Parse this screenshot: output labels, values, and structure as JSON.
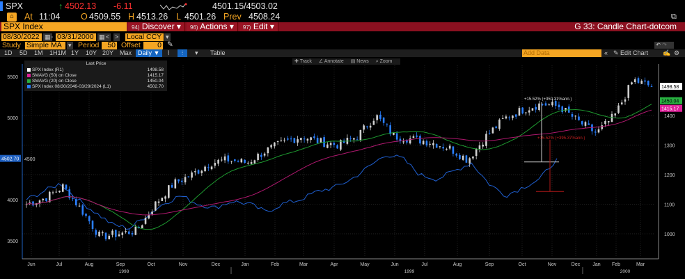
{
  "quote": {
    "ticker": "SPX",
    "last": "4502.13",
    "change": "-6.11",
    "bid_ask": "4501.15/4503.02",
    "time_label": "At",
    "time": "11:04",
    "open_label": "O",
    "open": "4509.55",
    "high_label": "H",
    "high": "4513.26",
    "low_label": "L",
    "low": "4501.26",
    "prev_label": "Prev",
    "prev": "4508.24"
  },
  "menu": {
    "security": "SPX Index",
    "discover_num": "94)",
    "discover": "Discover",
    "actions_num": "96)",
    "actions": "Actions",
    "edit_num": "97)",
    "edit": "Edit",
    "title": "G 33: Candle Chart-dotcom"
  },
  "controls": {
    "start_date": "08/30/2022",
    "end_date": "03/31/2000",
    "currency": "Local CCY",
    "study_label": "Study",
    "study": "Simple MA",
    "period_label": "Period",
    "period": "50",
    "offset_label": "Offset",
    "offset": "0"
  },
  "timeframes": [
    "1D",
    "5D",
    "1M",
    "1H1M",
    "1Y",
    "10Y",
    "20Y",
    "Max"
  ],
  "frequency": "Daily ▼",
  "table_label": "Table",
  "add_data_placeholder": "Add Data",
  "edit_chart": "Edit Chart",
  "chart_tools": [
    "Track",
    "Annotate",
    "News",
    "Zoom"
  ],
  "legend": {
    "header": "Last Price",
    "items": [
      {
        "label": "SPX Index  (R1)",
        "value": "1498.58",
        "color": "#ffffff"
      },
      {
        "label": "SMAVG (50)  on Close",
        "value": "1415.17",
        "color": "#e0209a"
      },
      {
        "label": "SMAVG (20)  on Close",
        "value": "1450.04",
        "color": "#28b040"
      },
      {
        "label": "SPX Index 08/30/2046-03/29/2024   (L1)",
        "value": "4502.70",
        "color": "#2a7fff"
      }
    ]
  },
  "chart_data": {
    "type": "candlestick",
    "x_months": [
      "Jun",
      "Jul",
      "Aug",
      "Sep",
      "Oct",
      "Nov",
      "Dec",
      "Jan",
      "Feb",
      "Mar",
      "Apr",
      "May",
      "Jun",
      "Jul",
      "Aug",
      "Sep",
      "Oct",
      "Nov",
      "Dec",
      "Jan",
      "Feb",
      "Mar"
    ],
    "x_years": [
      "1998",
      "1999",
      "2000"
    ],
    "right_axis_ticks": [
      1000,
      1100,
      1200,
      1300,
      1400
    ],
    "left_axis_ticks": [
      3500,
      4000,
      4500,
      5000,
      5500
    ],
    "right_labels": {
      "last": "1498.58",
      "sma20": "1450.04",
      "sma50": "1415.17"
    },
    "left_label": "4502.70",
    "spx_1998_2000_approx": [
      1100,
      1120,
      1160,
      1080,
      990,
      1000,
      1010,
      1100,
      1170,
      1200,
      1240,
      1250,
      1240,
      1280,
      1310,
      1330,
      1310,
      1300,
      1330,
      1400,
      1330,
      1320,
      1310,
      1290,
      1250,
      1330,
      1390,
      1420,
      1440,
      1430,
      1380,
      1340,
      1400,
      1520,
      1498.58
    ],
    "spx_2023_2024_approx": [
      4000,
      4100,
      4200,
      4000,
      3850,
      3700,
      3650,
      3800,
      3950,
      4050,
      3950,
      3900,
      3980,
      3950,
      3850,
      3950,
      4000,
      4100,
      4150,
      4250,
      4400,
      4550,
      4500,
      4300,
      4250,
      4350,
      4450,
      4200,
      4050,
      4150,
      4250,
      4502.7
    ],
    "annotations": [
      {
        "text": "+15.52% (+350.31%ann.)",
        "color": "#dddddd"
      },
      {
        "text": "+15.52% (+395.37%ann.)",
        "color": "#c02020"
      }
    ]
  }
}
